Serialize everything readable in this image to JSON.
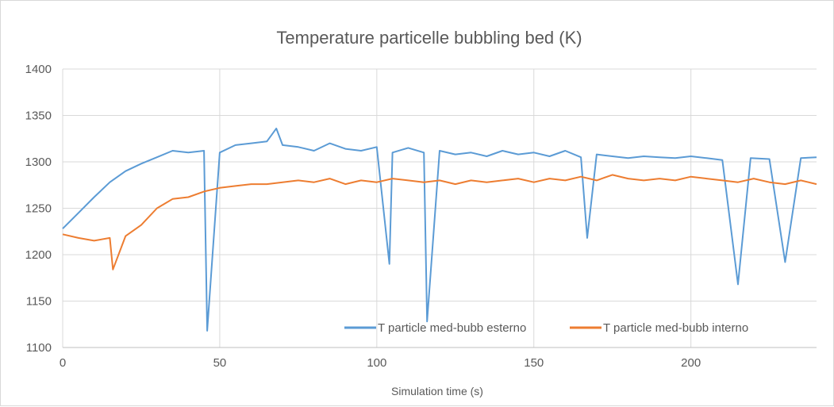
{
  "chart_data": {
    "type": "line",
    "title": "Temperature particelle bubbling bed (K)",
    "xlabel": "Simulation time (s)",
    "ylabel": "",
    "xlim": [
      0,
      240
    ],
    "ylim": [
      1100,
      1400
    ],
    "x_ticks": [
      0,
      50,
      100,
      150,
      200
    ],
    "y_ticks": [
      1100,
      1150,
      1200,
      1250,
      1300,
      1350,
      1400
    ],
    "grid": true,
    "legend_position": "bottom-right",
    "series": [
      {
        "name": "T particle med-bubb esterno",
        "color": "#5b9bd5",
        "x": [
          0,
          5,
          10,
          15,
          20,
          25,
          30,
          35,
          40,
          45,
          46,
          50,
          55,
          60,
          65,
          68,
          70,
          75,
          80,
          85,
          90,
          95,
          100,
          104,
          105,
          110,
          115,
          116,
          120,
          125,
          130,
          135,
          140,
          145,
          150,
          155,
          160,
          165,
          167,
          170,
          175,
          180,
          185,
          190,
          195,
          200,
          205,
          210,
          215,
          219,
          225,
          230,
          235,
          240
        ],
        "y": [
          1228,
          1245,
          1262,
          1278,
          1290,
          1298,
          1305,
          1312,
          1310,
          1312,
          1118,
          1310,
          1318,
          1320,
          1322,
          1336,
          1318,
          1316,
          1312,
          1320,
          1314,
          1312,
          1316,
          1190,
          1310,
          1315,
          1310,
          1128,
          1312,
          1308,
          1310,
          1306,
          1312,
          1308,
          1310,
          1306,
          1312,
          1305,
          1218,
          1308,
          1306,
          1304,
          1306,
          1305,
          1304,
          1306,
          1304,
          1302,
          1168,
          1304,
          1303,
          1192,
          1304,
          1305
        ]
      },
      {
        "name": "T particle med-bubb interno",
        "color": "#ed7d31",
        "x": [
          0,
          5,
          10,
          15,
          16,
          20,
          25,
          30,
          35,
          40,
          45,
          50,
          55,
          60,
          65,
          70,
          75,
          80,
          85,
          90,
          95,
          100,
          105,
          110,
          115,
          120,
          125,
          130,
          135,
          140,
          145,
          150,
          155,
          160,
          165,
          170,
          175,
          180,
          185,
          190,
          195,
          200,
          205,
          210,
          215,
          220,
          225,
          230,
          235,
          240
        ],
        "y": [
          1222,
          1218,
          1215,
          1218,
          1184,
          1220,
          1232,
          1250,
          1260,
          1262,
          1268,
          1272,
          1274,
          1276,
          1276,
          1278,
          1280,
          1278,
          1282,
          1276,
          1280,
          1278,
          1282,
          1280,
          1278,
          1280,
          1276,
          1280,
          1278,
          1280,
          1282,
          1278,
          1282,
          1280,
          1284,
          1280,
          1286,
          1282,
          1280,
          1282,
          1280,
          1284,
          1282,
          1280,
          1278,
          1282,
          1278,
          1276,
          1280,
          1276
        ]
      }
    ]
  }
}
